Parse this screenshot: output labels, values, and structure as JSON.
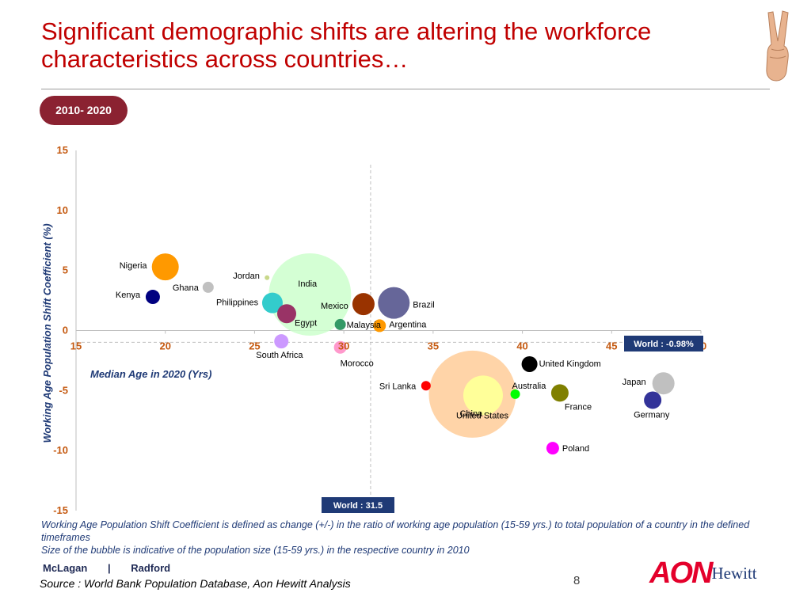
{
  "slide": {
    "title_line1": "Significant demographic shifts are altering the workforce",
    "title_line2": "characteristics across countries…",
    "period_badge": "2010- 2020",
    "notes_line1": "Working Age Population Shift Coefficient is defined as change (+/-) in the ratio of working age population (15-59 yrs.) to total population of a country in the defined timeframes",
    "notes_line2": "Size of the bubble is indicative of the population size (15-59 yrs.) in the respective country in 2010",
    "brand_left": [
      "McLagan",
      "|",
      "Radford"
    ],
    "source": "Source : World Bank Population Database, Aon Hewitt Analysis",
    "page_number": "8",
    "logo_left": "AON",
    "logo_right": "Hewitt",
    "accent_color": "#c00000",
    "badge_color": "#8b2231"
  },
  "chart_data": {
    "type": "scatter",
    "subtype": "bubble",
    "xlabel": "Median Age in 2020 (Yrs)",
    "ylabel": "Working Age Population Shift Coefficient (%)",
    "xlim": [
      15,
      50
    ],
    "ylim": [
      -15,
      15
    ],
    "x_ticks": [
      "15",
      "20",
      "25",
      "30",
      "35",
      "40",
      "45",
      "50"
    ],
    "y_ticks": [
      "15",
      "10",
      "5",
      "0",
      "-5",
      "-10",
      "-15"
    ],
    "reference_lines": [
      {
        "axis": "x",
        "value": 31.5,
        "label": "World : 31.5"
      },
      {
        "axis": "y",
        "value": -0.98,
        "label": "World : -0.98%"
      }
    ],
    "points": [
      {
        "name": "Nigeria",
        "x": 20,
        "y": 5.3,
        "size": 17,
        "color": "#ff9900"
      },
      {
        "name": "Jordan",
        "x": 25.7,
        "y": 4.4,
        "size": 3,
        "color": "#c8d88a"
      },
      {
        "name": "Ghana",
        "x": 22.4,
        "y": 3.6,
        "size": 7,
        "color": "#c0c0c0"
      },
      {
        "name": "Kenya",
        "x": 19.3,
        "y": 2.8,
        "size": 9,
        "color": "#000080"
      },
      {
        "name": "India",
        "x": 28.1,
        "y": 3.0,
        "size": 52,
        "color": "#ccffcc"
      },
      {
        "name": "Philippines",
        "x": 26,
        "y": 2.3,
        "size": 13,
        "color": "#33cccc"
      },
      {
        "name": "Mexico",
        "x": 31.1,
        "y": 2.2,
        "size": 14,
        "color": "#993300"
      },
      {
        "name": "Brazil",
        "x": 32.8,
        "y": 2.3,
        "size": 20,
        "color": "#666699"
      },
      {
        "name": "Egypt",
        "x": 26.8,
        "y": 1.4,
        "size": 12,
        "color": "#993366"
      },
      {
        "name": "Malaysia",
        "x": 29.8,
        "y": 0.5,
        "size": 7,
        "color": "#339966"
      },
      {
        "name": "Argentina",
        "x": 32.0,
        "y": 0.4,
        "size": 8,
        "color": "#ff9900"
      },
      {
        "name": "South Africa",
        "x": 26.5,
        "y": -0.9,
        "size": 9,
        "color": "#cc99ff"
      },
      {
        "name": "Morocco",
        "x": 29.8,
        "y": -1.4,
        "size": 8,
        "color": "#ff99cc"
      },
      {
        "name": "China",
        "x": 37.2,
        "y": -5.3,
        "size": 55,
        "color": "#ffcc99"
      },
      {
        "name": "United Kingdom",
        "x": 40.4,
        "y": -2.8,
        "size": 10,
        "color": "#000000"
      },
      {
        "name": "Sri Lanka",
        "x": 34.6,
        "y": -4.6,
        "size": 6,
        "color": "#ff0000"
      },
      {
        "name": "Australia",
        "x": 39.6,
        "y": -5.3,
        "size": 6,
        "color": "#00ff00"
      },
      {
        "name": "United States",
        "x": 37.8,
        "y": -5.4,
        "size": 25,
        "color": "#ffff99"
      },
      {
        "name": "France",
        "x": 42.1,
        "y": -5.2,
        "size": 11,
        "color": "#808000"
      },
      {
        "name": "Japan",
        "x": 47.9,
        "y": -4.4,
        "size": 14,
        "color": "#c0c0c0"
      },
      {
        "name": "Germany",
        "x": 47.3,
        "y": -5.8,
        "size": 11,
        "color": "#333399"
      },
      {
        "name": "Poland",
        "x": 41.7,
        "y": -9.8,
        "size": 8,
        "color": "#ff00ff"
      }
    ]
  }
}
